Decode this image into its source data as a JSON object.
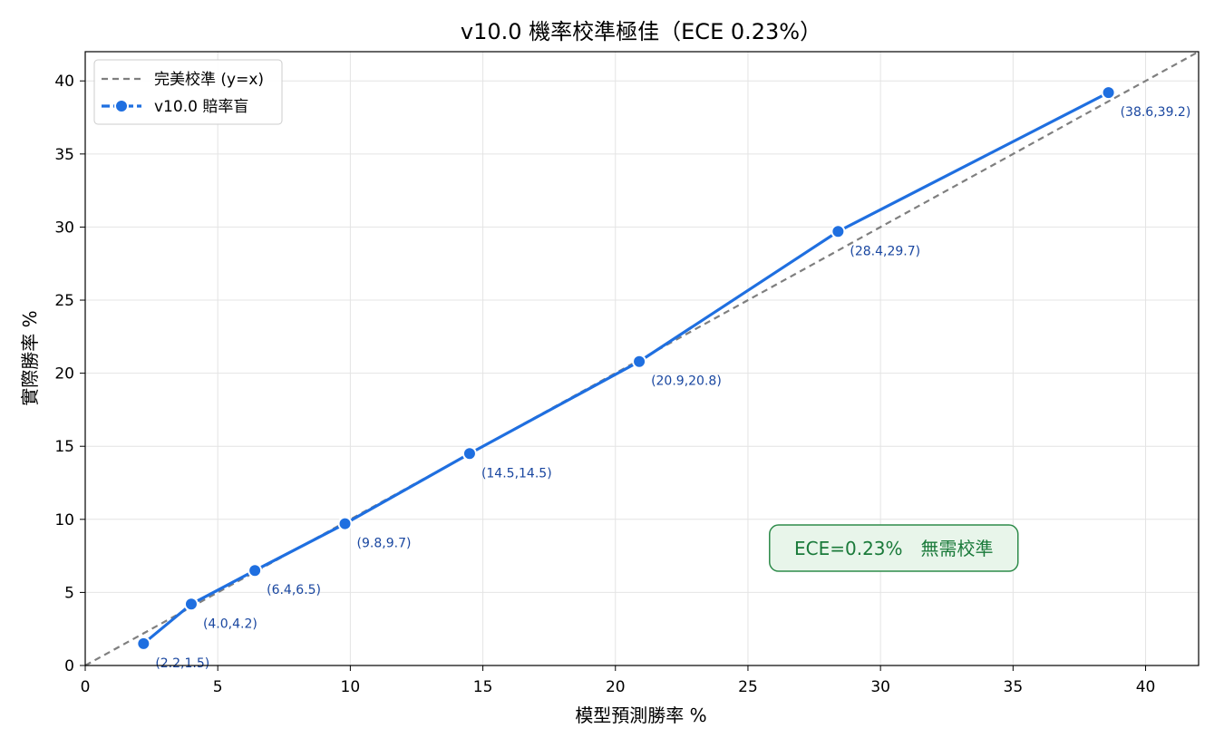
{
  "chart_data": {
    "type": "line",
    "title": "v10.0 機率校準極佳（ECE 0.23%）",
    "xlabel": "模型預測勝率 %",
    "ylabel": "實際勝率 %",
    "xlim": [
      0,
      42
    ],
    "ylim": [
      0,
      42
    ],
    "xticks": [
      0,
      5,
      10,
      15,
      20,
      25,
      30,
      35,
      40
    ],
    "yticks": [
      0,
      5,
      10,
      15,
      20,
      25,
      30,
      35,
      40
    ],
    "grid": true,
    "legend_position": "top-left",
    "series": [
      {
        "name": "完美校準 (y=x)",
        "style": "dashed",
        "color": "#7f7f7f",
        "x": [
          0,
          42
        ],
        "y": [
          0,
          42
        ]
      },
      {
        "name": "v10.0 賠率盲",
        "style": "solid-markers",
        "color": "#1f6fe0",
        "x": [
          2.2,
          4.0,
          6.4,
          9.8,
          14.5,
          20.9,
          28.4,
          38.6
        ],
        "y": [
          1.5,
          4.2,
          6.5,
          9.7,
          14.5,
          20.8,
          29.7,
          39.2
        ],
        "labels": [
          "(2.2,1.5)",
          "(4.0,4.2)",
          "(6.4,6.5)",
          "(9.8,9.7)",
          "(14.5,14.5)",
          "(20.9,20.8)",
          "(28.4,29.7)",
          "(38.6,39.2)"
        ]
      }
    ],
    "annotation": {
      "text": "ECE=0.23%　無需校準",
      "x": 30.5,
      "y": 8.0,
      "text_color": "#1a7a3a",
      "box_fill": "#e8f5ea",
      "box_stroke": "#2e8b4a"
    }
  }
}
